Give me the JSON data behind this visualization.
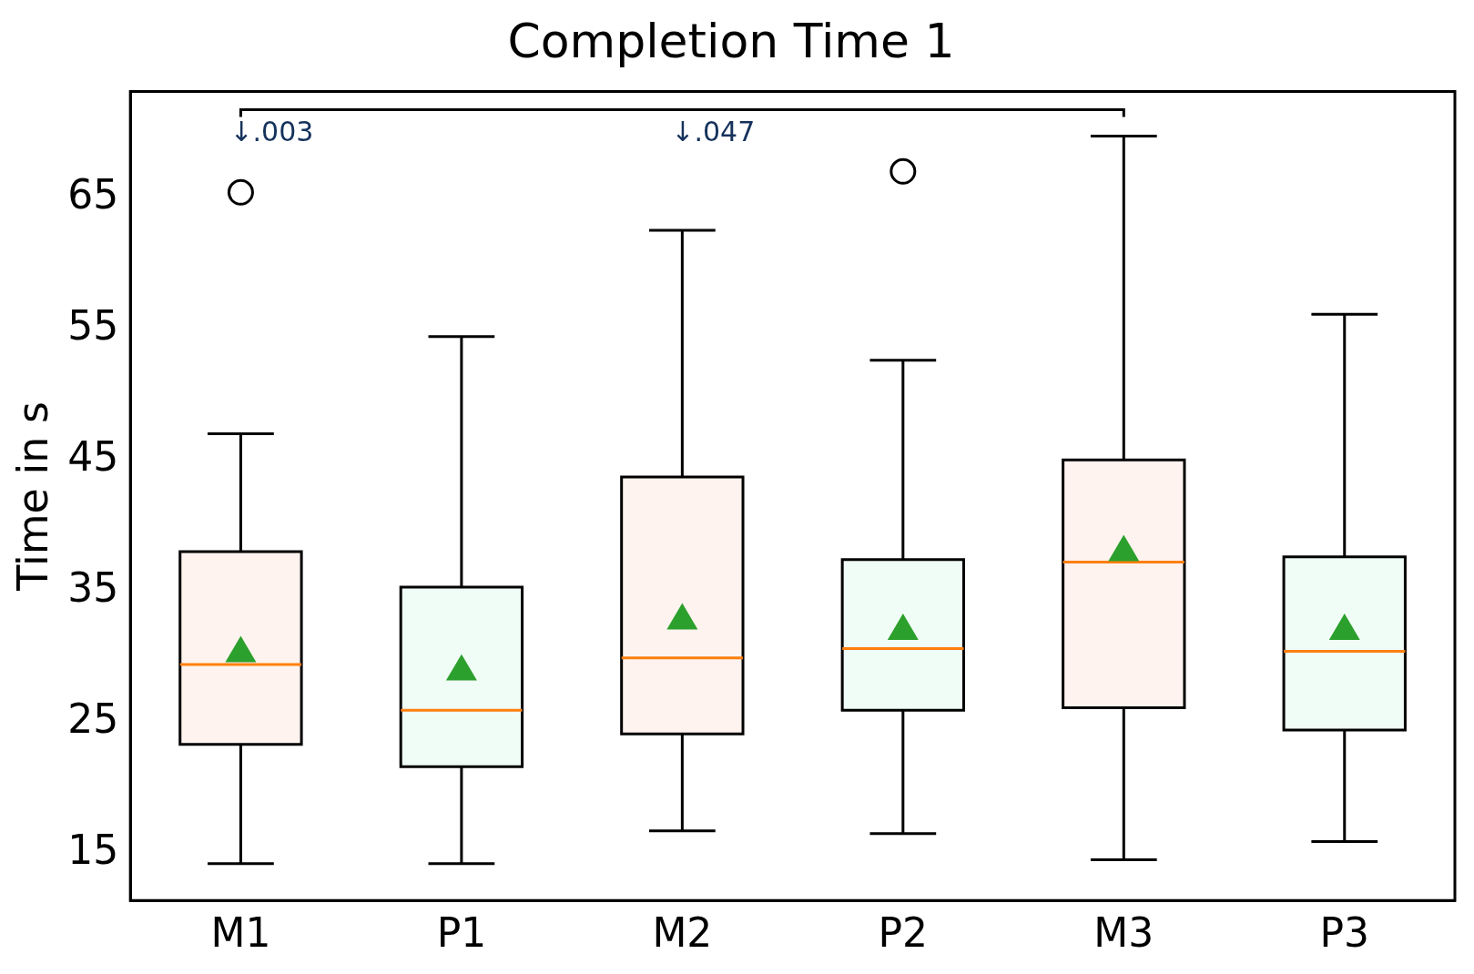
{
  "chart_data": {
    "type": "box",
    "title": "Completion Time 1",
    "ylabel": "Time in s",
    "categories": [
      "M1",
      "P1",
      "M2",
      "P2",
      "M3",
      "P3"
    ],
    "colors": [
      "#fef3ee",
      "#f0fcf6",
      "#fef3ee",
      "#f0fcf6",
      "#fef3ee",
      "#f0fcf6"
    ],
    "boxes": [
      {
        "low": 14.2,
        "q1": 23.3,
        "median": 29.4,
        "q3": 38,
        "high": 47,
        "mean": 30.4,
        "outliers": [
          65.4
        ]
      },
      {
        "low": 14.2,
        "q1": 21.6,
        "median": 25.9,
        "q3": 35.3,
        "high": 54.4,
        "mean": 29
      },
      {
        "low": 16.7,
        "q1": 24.1,
        "median": 29.9,
        "q3": 43.7,
        "high": 62.5,
        "mean": 32.9
      },
      {
        "low": 16.5,
        "q1": 25.9,
        "median": 30.6,
        "q3": 37.4,
        "high": 52.6,
        "mean": 32.1,
        "outliers": [
          67
        ]
      },
      {
        "low": 14.5,
        "q1": 26.1,
        "median": 37.2,
        "q3": 45,
        "high": 69.7,
        "mean": 38.1
      },
      {
        "low": 15.9,
        "q1": 24.4,
        "median": 30.4,
        "q3": 37.6,
        "high": 56.1,
        "mean": 32.1
      }
    ],
    "annotations": [
      "↓.003",
      "↓.047"
    ],
    "ylim": [
      11.4,
      73.1
    ],
    "yticks": [
      15,
      25,
      35,
      45,
      55,
      65
    ],
    "grid": false,
    "marker": "triangle"
  }
}
